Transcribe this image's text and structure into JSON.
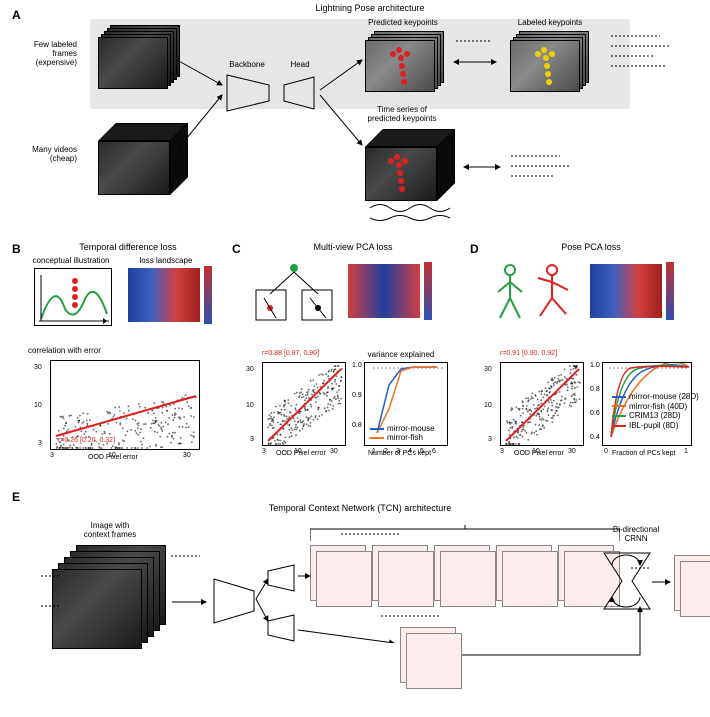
{
  "figure_title": "Lightning Pose architecture",
  "panels": {
    "A": {
      "label": "A",
      "title": "Lightning Pose architecture",
      "left_labels": {
        "top": "Few labeled\nframes\n(expensive)",
        "bottom": "Many videos\n(cheap)"
      },
      "blocks": {
        "backbone": "Backbone",
        "head": "Head"
      },
      "outputs": {
        "predicted": "Predicted keypoints",
        "labeled": "Labeled keypoints",
        "timeseries": "Time series of\npredicted keypoints"
      },
      "keypoint_colors": {
        "predicted": "#e02020",
        "labeled": "#f0d000"
      },
      "gray_box_color": "#e6e6e6"
    },
    "B": {
      "label": "B",
      "title": "Temporal difference loss",
      "subtitles": {
        "left": "conceptual illustration",
        "right": "loss landscape"
      },
      "corr_title": "correlation with error",
      "corr_text": "r=0.26 [0.20, 0.32]",
      "xlabel": "OOD Pixel error",
      "x_ticks": [
        3,
        10,
        30
      ],
      "y_ticks": [
        3,
        10,
        30
      ],
      "fit_color": "#e02020",
      "heatmap_gradient": [
        "#2040a0",
        "#d04040"
      ]
    },
    "C": {
      "label": "C",
      "title": "Multi-view PCA loss",
      "corr_text": "r=0.88 [0.87, 0.90]",
      "xlabel": "OOD Pixel error",
      "right_plot": {
        "title": "variance explained",
        "xlabel": "Number of PCs kept",
        "x_ticks": [
          1,
          2,
          3,
          4,
          5,
          6
        ],
        "y_ticks": [
          0.8,
          0.9,
          1.0
        ],
        "series": [
          {
            "name": "mirror-mouse",
            "color": "#2060d0",
            "values": [
              0.8,
              0.94,
              0.99,
              1.0,
              1.0,
              1.0
            ]
          },
          {
            "name": "mirror-fish",
            "color": "#f07020",
            "values": [
              0.8,
              0.87,
              0.99,
              1.0,
              1.0,
              1.0
            ]
          }
        ]
      }
    },
    "D": {
      "label": "D",
      "title": "Pose PCA loss",
      "corr_text": "r=0.91 [0.90, 0.92]",
      "xlabel": "OOD Pixel error",
      "right_plot": {
        "xlabel": "Fraction of PCs kept",
        "x_ticks": [
          0,
          1
        ],
        "y_ticks": [
          0.4,
          0.6,
          0.8,
          1.0
        ],
        "series": [
          {
            "name": "mirror-mouse (28D)",
            "color": "#2060d0"
          },
          {
            "name": "mirror-fish (40D)",
            "color": "#f07020"
          },
          {
            "name": "CRIM13 (28D)",
            "color": "#20a040"
          },
          {
            "name": "IBL-pupil (8D)",
            "color": "#e02020"
          }
        ]
      }
    },
    "E": {
      "label": "E",
      "title": "Temporal Context Network (TCN) architecture",
      "left_label": "Image with\ncontext frames",
      "crnn_label": "Bi-directional\nCRNN",
      "heat_color": "#fdecec",
      "dot_color": "#ff2020"
    }
  },
  "colors": {
    "red": "#e02020",
    "yellow": "#f0d000",
    "blue": "#2060d0",
    "orange": "#f07020",
    "green": "#20a040",
    "gray_bg": "#e6e6e6",
    "text": "#000000",
    "heat_tile": "#fdecec"
  },
  "typography": {
    "base_font": "Arial",
    "panel_label_size_pt": 12,
    "caption_size_pt": 9,
    "tiny_size_pt": 8
  }
}
